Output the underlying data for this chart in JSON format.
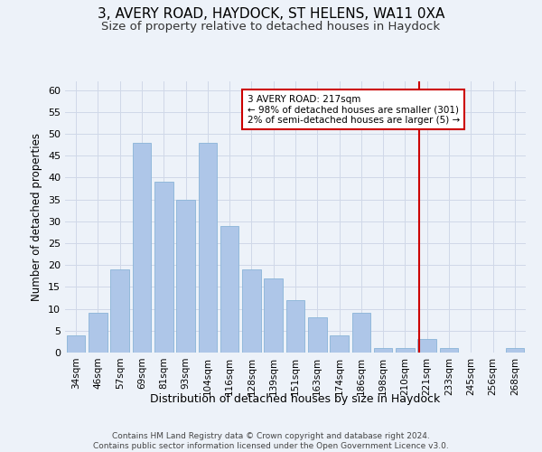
{
  "title1": "3, AVERY ROAD, HAYDOCK, ST HELENS, WA11 0XA",
  "title2": "Size of property relative to detached houses in Haydock",
  "xlabel": "Distribution of detached houses by size in Haydock",
  "ylabel": "Number of detached properties",
  "categories": [
    "34sqm",
    "46sqm",
    "57sqm",
    "69sqm",
    "81sqm",
    "93sqm",
    "104sqm",
    "116sqm",
    "128sqm",
    "139sqm",
    "151sqm",
    "163sqm",
    "174sqm",
    "186sqm",
    "198sqm",
    "210sqm",
    "221sqm",
    "233sqm",
    "245sqm",
    "256sqm",
    "268sqm"
  ],
  "values": [
    4,
    9,
    19,
    48,
    39,
    35,
    48,
    29,
    19,
    17,
    12,
    8,
    4,
    9,
    1,
    1,
    3,
    1,
    0,
    0,
    1
  ],
  "bar_color": "#aec6e8",
  "bar_edge_color": "#8ab4d8",
  "grid_color": "#d0d8e8",
  "vline_color": "#cc0000",
  "annotation_text": "3 AVERY ROAD: 217sqm\n← 98% of detached houses are smaller (301)\n2% of semi-detached houses are larger (5) →",
  "annotation_box_color": "#cc0000",
  "ylim": [
    0,
    62
  ],
  "yticks": [
    0,
    5,
    10,
    15,
    20,
    25,
    30,
    35,
    40,
    45,
    50,
    55,
    60
  ],
  "footer": "Contains HM Land Registry data © Crown copyright and database right 2024.\nContains public sector information licensed under the Open Government Licence v3.0.",
  "bg_color": "#edf2f9",
  "title1_fontsize": 11,
  "title2_fontsize": 9.5
}
